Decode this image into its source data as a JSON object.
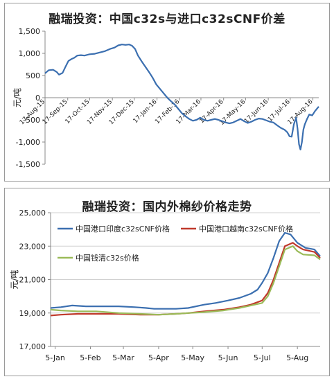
{
  "chart_data": [
    {
      "type": "line",
      "title": "融瑞投资：中国c32s与进口c32sCNF价差",
      "ylabel": "元/吨",
      "ylim": [
        -1500,
        1500
      ],
      "yticks": [
        1500,
        1000,
        500,
        0,
        -500,
        -1000,
        -1500
      ],
      "ytick_labels": [
        "1,500",
        "1,000",
        "500",
        "0",
        "-500",
        "-1,000",
        "-1,500"
      ],
      "x_range": [
        "2015-08-17",
        "2016-08-25"
      ],
      "xticks": [
        "2015-08-17",
        "2015-09-17",
        "2015-10-17",
        "2015-11-17",
        "2015-12-17",
        "2016-01-17",
        "2016-02-17",
        "2016-03-17",
        "2016-04-17",
        "2016-05-17",
        "2016-06-17",
        "2016-07-17",
        "2016-08-17"
      ],
      "xtick_labels": [
        "17-Aug-15",
        "17-Sep-15",
        "17-Oct-15",
        "17-Nov-15",
        "17-Dec-15",
        "17-Jan-16",
        "17-Feb-16",
        "17-Mar-16",
        "17-Apr-16",
        "17-May-16",
        "17-Jun-16",
        "17-Jul-16",
        "17-Aug-16"
      ],
      "grid": false,
      "series": [
        {
          "color": "#3b6fb0",
          "points": [
            [
              "2015-08-17",
              550
            ],
            [
              "2015-08-22",
              620
            ],
            [
              "2015-08-28",
              630
            ],
            [
              "2015-09-02",
              580
            ],
            [
              "2015-09-05",
              520
            ],
            [
              "2015-09-10",
              560
            ],
            [
              "2015-09-14",
              700
            ],
            [
              "2015-09-18",
              830
            ],
            [
              "2015-09-22",
              870
            ],
            [
              "2015-09-26",
              900
            ],
            [
              "2015-09-30",
              950
            ],
            [
              "2015-10-05",
              960
            ],
            [
              "2015-10-10",
              950
            ],
            [
              "2015-10-17",
              980
            ],
            [
              "2015-10-24",
              990
            ],
            [
              "2015-10-31",
              1020
            ],
            [
              "2015-11-07",
              1050
            ],
            [
              "2015-11-14",
              1100
            ],
            [
              "2015-11-20",
              1130
            ],
            [
              "2015-11-25",
              1180
            ],
            [
              "2015-11-30",
              1200
            ],
            [
              "2015-12-05",
              1190
            ],
            [
              "2015-12-10",
              1200
            ],
            [
              "2015-12-14",
              1170
            ],
            [
              "2015-12-18",
              1100
            ],
            [
              "2015-12-22",
              950
            ],
            [
              "2015-12-27",
              820
            ],
            [
              "2016-01-01",
              700
            ],
            [
              "2016-01-06",
              580
            ],
            [
              "2016-01-11",
              450
            ],
            [
              "2016-01-16",
              300
            ],
            [
              "2016-01-21",
              200
            ],
            [
              "2016-01-26",
              100
            ],
            [
              "2016-01-31",
              0
            ],
            [
              "2016-02-05",
              -80
            ],
            [
              "2016-02-10",
              -150
            ],
            [
              "2016-02-15",
              -250
            ],
            [
              "2016-02-20",
              -350
            ],
            [
              "2016-02-25",
              -420
            ],
            [
              "2016-03-01",
              -480
            ],
            [
              "2016-03-06",
              -520
            ],
            [
              "2016-03-11",
              -500
            ],
            [
              "2016-03-16",
              -450
            ],
            [
              "2016-03-21",
              -500
            ],
            [
              "2016-03-26",
              -520
            ],
            [
              "2016-03-31",
              -500
            ],
            [
              "2016-04-05",
              -480
            ],
            [
              "2016-04-10",
              -500
            ],
            [
              "2016-04-15",
              -530
            ],
            [
              "2016-04-20",
              -560
            ],
            [
              "2016-04-25",
              -580
            ],
            [
              "2016-04-30",
              -560
            ],
            [
              "2016-05-05",
              -520
            ],
            [
              "2016-05-10",
              -480
            ],
            [
              "2016-05-15",
              -530
            ],
            [
              "2016-05-20",
              -570
            ],
            [
              "2016-05-25",
              -540
            ],
            [
              "2016-05-30",
              -500
            ],
            [
              "2016-06-04",
              -470
            ],
            [
              "2016-06-09",
              -480
            ],
            [
              "2016-06-14",
              -510
            ],
            [
              "2016-06-19",
              -540
            ],
            [
              "2016-06-24",
              -560
            ],
            [
              "2016-06-29",
              -620
            ],
            [
              "2016-07-04",
              -680
            ],
            [
              "2016-07-09",
              -720
            ],
            [
              "2016-07-13",
              -780
            ],
            [
              "2016-07-16",
              -870
            ],
            [
              "2016-07-19",
              -880
            ],
            [
              "2016-07-22",
              -600
            ],
            [
              "2016-07-25",
              -450
            ],
            [
              "2016-07-27",
              -700
            ],
            [
              "2016-07-29",
              -1050
            ],
            [
              "2016-07-31",
              -1170
            ],
            [
              "2016-08-02",
              -1000
            ],
            [
              "2016-08-04",
              -720
            ],
            [
              "2016-08-06",
              -600
            ],
            [
              "2016-08-09",
              -480
            ],
            [
              "2016-08-12",
              -380
            ],
            [
              "2016-08-16",
              -400
            ],
            [
              "2016-08-20",
              -300
            ],
            [
              "2016-08-25",
              -200
            ]
          ]
        }
      ]
    },
    {
      "type": "line",
      "title": "融瑞投资：国内外棉纱价格走势",
      "ylabel": "元/吨",
      "ylim": [
        17000,
        25000
      ],
      "yticks": [
        25000,
        23000,
        21000,
        19000,
        17000
      ],
      "ytick_labels": [
        "25,000",
        "23,000",
        "21,000",
        "19,000",
        "17,000"
      ],
      "x_range": [
        "01-01",
        "08-25"
      ],
      "xticks": [
        "01-05",
        "02-05",
        "03-05",
        "04-05",
        "05-05",
        "06-05",
        "07-05",
        "08-05"
      ],
      "xtick_labels": [
        "5-Jan",
        "5-Feb",
        "5-Mar",
        "5-Apr",
        "5-May",
        "5-Jun",
        "5-Jul",
        "5-Aug"
      ],
      "grid": true,
      "legend": "top-left",
      "series": [
        {
          "name": "中国港口印度c32sCNF价格",
          "color": "#3b6fb0",
          "points": [
            [
              "01-01",
              19300
            ],
            [
              "01-10",
              19350
            ],
            [
              "01-20",
              19450
            ],
            [
              "02-01",
              19400
            ],
            [
              "02-15",
              19400
            ],
            [
              "03-01",
              19400
            ],
            [
              "03-15",
              19350
            ],
            [
              "03-25",
              19300
            ],
            [
              "04-01",
              19250
            ],
            [
              "04-10",
              19250
            ],
            [
              "04-20",
              19250
            ],
            [
              "05-01",
              19300
            ],
            [
              "05-15",
              19500
            ],
            [
              "05-25",
              19600
            ],
            [
              "06-05",
              19750
            ],
            [
              "06-15",
              19900
            ],
            [
              "06-25",
              20150
            ],
            [
              "07-01",
              20400
            ],
            [
              "07-05",
              20800
            ],
            [
              "07-10",
              21400
            ],
            [
              "07-15",
              22300
            ],
            [
              "07-20",
              23300
            ],
            [
              "07-25",
              23800
            ],
            [
              "07-30",
              23700
            ],
            [
              "08-05",
              23200
            ],
            [
              "08-12",
              22900
            ],
            [
              "08-20",
              22800
            ],
            [
              "08-25",
              22400
            ]
          ]
        },
        {
          "name": "中国港口越南c32sCNF价格",
          "color": "#c0392b",
          "points": [
            [
              "01-01",
              18850
            ],
            [
              "01-10",
              18900
            ],
            [
              "01-25",
              18950
            ],
            [
              "02-10",
              18950
            ],
            [
              "03-01",
              18950
            ],
            [
              "03-20",
              18900
            ],
            [
              "04-05",
              18900
            ],
            [
              "04-20",
              18950
            ],
            [
              "05-01",
              19000
            ],
            [
              "05-15",
              19100
            ],
            [
              "06-01",
              19200
            ],
            [
              "06-15",
              19350
            ],
            [
              "06-25",
              19500
            ],
            [
              "07-05",
              19750
            ],
            [
              "07-10",
              20200
            ],
            [
              "07-15",
              21000
            ],
            [
              "07-20",
              22000
            ],
            [
              "07-25",
              23000
            ],
            [
              "08-01",
              23200
            ],
            [
              "08-05",
              23000
            ],
            [
              "08-10",
              22800
            ],
            [
              "08-20",
              22650
            ],
            [
              "08-25",
              22300
            ]
          ]
        },
        {
          "name": "中国钱清c32s价格",
          "color": "#9bbb59",
          "points": [
            [
              "01-01",
              19200
            ],
            [
              "01-10",
              19150
            ],
            [
              "01-25",
              19100
            ],
            [
              "02-10",
              19100
            ],
            [
              "03-01",
              19000
            ],
            [
              "03-20",
              18950
            ],
            [
              "04-05",
              18900
            ],
            [
              "04-20",
              18950
            ],
            [
              "05-01",
              19000
            ],
            [
              "05-15",
              19050
            ],
            [
              "06-01",
              19150
            ],
            [
              "06-15",
              19300
            ],
            [
              "06-25",
              19450
            ],
            [
              "07-05",
              19600
            ],
            [
              "07-10",
              20000
            ],
            [
              "07-15",
              20800
            ],
            [
              "07-20",
              21800
            ],
            [
              "07-25",
              22800
            ],
            [
              "08-01",
              23000
            ],
            [
              "08-05",
              22700
            ],
            [
              "08-10",
              22500
            ],
            [
              "08-20",
              22450
            ],
            [
              "08-25",
              22200
            ]
          ]
        }
      ]
    }
  ]
}
